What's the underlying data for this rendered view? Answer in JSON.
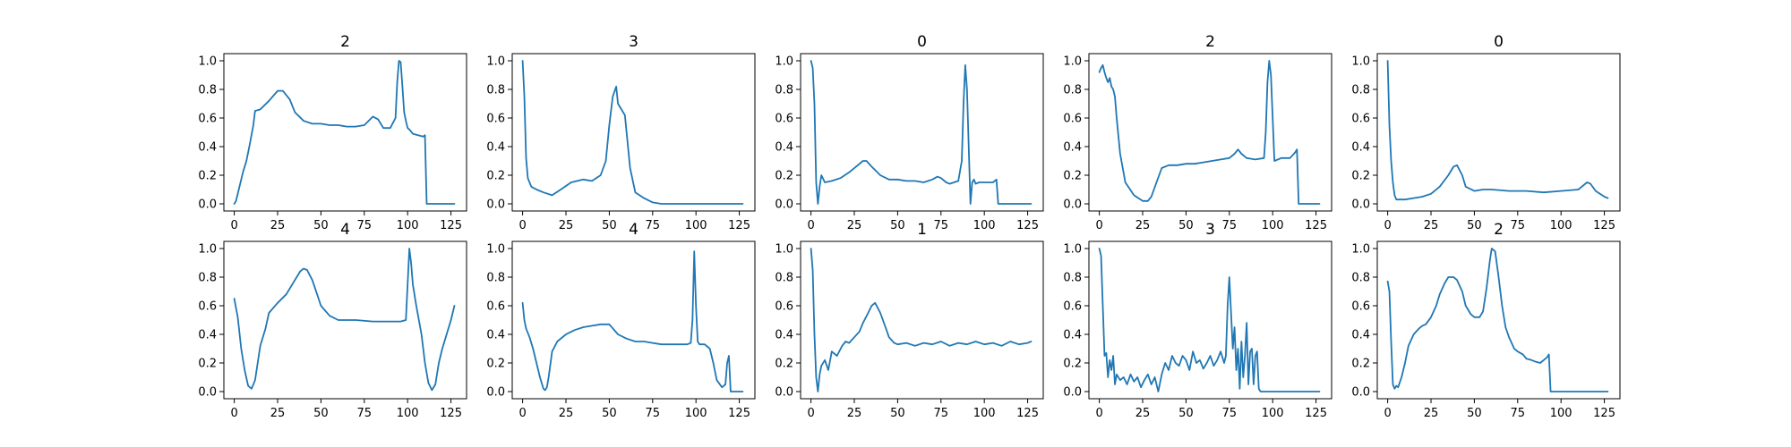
{
  "figure": {
    "line_color": "#1f77b4",
    "background": "#ffffff"
  },
  "chart_data": [
    {
      "type": "line",
      "title": "2",
      "xlim": [
        -6,
        134
      ],
      "ylim": [
        -0.05,
        1.05
      ],
      "xticks": [
        0,
        25,
        50,
        75,
        100,
        125
      ],
      "yticks": [
        0.0,
        0.2,
        0.4,
        0.6,
        0.8,
        1.0
      ],
      "x": [
        0,
        1,
        3,
        5,
        7,
        9,
        11,
        12,
        15,
        20,
        25,
        28,
        32,
        35,
        40,
        45,
        50,
        55,
        60,
        65,
        70,
        75,
        80,
        83,
        86,
        90,
        93,
        94,
        95,
        96,
        97,
        98,
        99,
        100,
        101,
        103,
        106,
        109,
        110,
        111,
        115,
        120,
        125,
        127
      ],
      "series": [
        {
          "values": [
            0.0,
            0.02,
            0.12,
            0.22,
            0.3,
            0.42,
            0.55,
            0.65,
            0.66,
            0.72,
            0.79,
            0.79,
            0.73,
            0.64,
            0.58,
            0.56,
            0.56,
            0.55,
            0.55,
            0.54,
            0.54,
            0.55,
            0.61,
            0.59,
            0.53,
            0.53,
            0.6,
            0.85,
            1.0,
            0.99,
            0.82,
            0.64,
            0.58,
            0.53,
            0.52,
            0.49,
            0.48,
            0.47,
            0.48,
            0.0,
            0.0,
            0.0,
            0.0,
            0.0
          ]
        }
      ]
    },
    {
      "type": "line",
      "title": "3",
      "xlim": [
        -6,
        134
      ],
      "ylim": [
        -0.05,
        1.05
      ],
      "xticks": [
        0,
        25,
        50,
        75,
        100,
        125
      ],
      "yticks": [
        0.0,
        0.2,
        0.4,
        0.6,
        0.8,
        1.0
      ],
      "x": [
        0,
        1,
        2,
        3,
        5,
        8,
        12,
        17,
        22,
        28,
        35,
        40,
        45,
        48,
        50,
        52,
        54,
        55,
        57,
        59,
        62,
        65,
        70,
        75,
        80,
        90,
        100,
        110,
        120,
        127
      ],
      "series": [
        {
          "values": [
            1.0,
            0.75,
            0.32,
            0.18,
            0.12,
            0.1,
            0.08,
            0.06,
            0.1,
            0.15,
            0.17,
            0.16,
            0.2,
            0.3,
            0.55,
            0.75,
            0.82,
            0.7,
            0.66,
            0.62,
            0.25,
            0.08,
            0.04,
            0.01,
            0.0,
            0.0,
            0.0,
            0.0,
            0.0,
            0.0
          ]
        }
      ]
    },
    {
      "type": "line",
      "title": "0",
      "xlim": [
        -6,
        134
      ],
      "ylim": [
        -0.05,
        1.05
      ],
      "xticks": [
        0,
        25,
        50,
        75,
        100,
        125
      ],
      "yticks": [
        0.0,
        0.2,
        0.4,
        0.6,
        0.8,
        1.0
      ],
      "x": [
        0,
        1,
        2,
        3,
        4,
        5,
        6,
        8,
        12,
        17,
        22,
        26,
        30,
        32,
        35,
        40,
        45,
        50,
        55,
        60,
        65,
        70,
        73,
        75,
        78,
        80,
        85,
        87,
        88,
        89,
        90,
        91,
        92,
        93,
        94,
        95,
        97,
        100,
        105,
        107,
        108,
        110,
        115,
        120,
        127
      ],
      "series": [
        {
          "values": [
            1.0,
            0.95,
            0.7,
            0.15,
            0.0,
            0.12,
            0.2,
            0.15,
            0.16,
            0.18,
            0.22,
            0.26,
            0.3,
            0.3,
            0.26,
            0.2,
            0.17,
            0.17,
            0.16,
            0.16,
            0.15,
            0.17,
            0.19,
            0.18,
            0.15,
            0.14,
            0.16,
            0.3,
            0.7,
            0.97,
            0.8,
            0.4,
            0.0,
            0.15,
            0.17,
            0.14,
            0.15,
            0.15,
            0.15,
            0.17,
            0.0,
            0.0,
            0.0,
            0.0,
            0.0
          ]
        }
      ]
    },
    {
      "type": "line",
      "title": "2",
      "xlim": [
        -6,
        134
      ],
      "ylim": [
        -0.05,
        1.05
      ],
      "xticks": [
        0,
        25,
        50,
        75,
        100,
        125
      ],
      "yticks": [
        0.0,
        0.2,
        0.4,
        0.6,
        0.8,
        1.0
      ],
      "x": [
        0,
        1,
        2,
        3,
        4,
        5,
        6,
        7,
        8,
        9,
        10,
        12,
        15,
        20,
        25,
        28,
        30,
        33,
        36,
        40,
        45,
        50,
        55,
        60,
        65,
        70,
        75,
        78,
        80,
        82,
        85,
        90,
        95,
        96,
        97,
        98,
        99,
        100,
        101,
        105,
        110,
        113,
        114,
        115,
        120,
        127
      ],
      "series": [
        {
          "values": [
            0.92,
            0.95,
            0.97,
            0.92,
            0.88,
            0.85,
            0.88,
            0.82,
            0.8,
            0.75,
            0.6,
            0.35,
            0.15,
            0.06,
            0.02,
            0.02,
            0.05,
            0.15,
            0.25,
            0.27,
            0.27,
            0.28,
            0.28,
            0.29,
            0.3,
            0.31,
            0.32,
            0.35,
            0.38,
            0.35,
            0.32,
            0.31,
            0.32,
            0.5,
            0.85,
            1.0,
            0.9,
            0.6,
            0.3,
            0.32,
            0.32,
            0.36,
            0.38,
            0.0,
            0.0,
            0.0
          ]
        }
      ]
    },
    {
      "type": "line",
      "title": "0",
      "xlim": [
        -6,
        134
      ],
      "ylim": [
        -0.05,
        1.05
      ],
      "xticks": [
        0,
        25,
        50,
        75,
        100,
        125
      ],
      "yticks": [
        0.0,
        0.2,
        0.4,
        0.6,
        0.8,
        1.0
      ],
      "x": [
        0,
        1,
        2,
        3,
        4,
        5,
        7,
        10,
        15,
        20,
        25,
        30,
        35,
        38,
        40,
        43,
        45,
        50,
        55,
        60,
        70,
        80,
        90,
        100,
        110,
        112,
        115,
        117,
        120,
        125,
        127
      ],
      "series": [
        {
          "values": [
            1.0,
            0.55,
            0.3,
            0.15,
            0.06,
            0.03,
            0.03,
            0.03,
            0.04,
            0.05,
            0.07,
            0.12,
            0.2,
            0.26,
            0.27,
            0.2,
            0.12,
            0.09,
            0.1,
            0.1,
            0.09,
            0.09,
            0.08,
            0.09,
            0.1,
            0.12,
            0.15,
            0.14,
            0.09,
            0.05,
            0.04
          ]
        }
      ]
    },
    {
      "type": "line",
      "title": "4",
      "xlim": [
        -6,
        134
      ],
      "ylim": [
        -0.05,
        1.05
      ],
      "xticks": [
        0,
        25,
        50,
        75,
        100,
        125
      ],
      "yticks": [
        0.0,
        0.2,
        0.4,
        0.6,
        0.8,
        1.0
      ],
      "x": [
        0,
        2,
        4,
        6,
        8,
        10,
        12,
        15,
        18,
        20,
        25,
        30,
        35,
        38,
        40,
        42,
        45,
        50,
        55,
        60,
        70,
        80,
        90,
        96,
        99,
        100,
        101,
        102,
        103,
        105,
        108,
        110,
        112,
        114,
        116,
        118,
        120,
        125,
        127
      ],
      "series": [
        {
          "values": [
            0.65,
            0.52,
            0.3,
            0.15,
            0.04,
            0.02,
            0.08,
            0.32,
            0.44,
            0.55,
            0.62,
            0.68,
            0.78,
            0.84,
            0.86,
            0.85,
            0.78,
            0.6,
            0.53,
            0.5,
            0.5,
            0.49,
            0.49,
            0.49,
            0.5,
            0.75,
            1.0,
            0.9,
            0.75,
            0.6,
            0.4,
            0.2,
            0.06,
            0.01,
            0.05,
            0.2,
            0.3,
            0.5,
            0.6
          ]
        }
      ]
    },
    {
      "type": "line",
      "title": "4",
      "xlim": [
        -6,
        134
      ],
      "ylim": [
        -0.05,
        1.05
      ],
      "xticks": [
        0,
        25,
        50,
        75,
        100,
        125
      ],
      "yticks": [
        0.0,
        0.2,
        0.4,
        0.6,
        0.8,
        1.0
      ],
      "x": [
        0,
        1,
        2,
        4,
        6,
        8,
        10,
        12,
        13,
        14,
        15,
        17,
        20,
        25,
        30,
        35,
        40,
        45,
        50,
        55,
        60,
        65,
        70,
        75,
        80,
        85,
        90,
        95,
        97,
        98,
        99,
        100,
        101,
        102,
        105,
        108,
        110,
        112,
        115,
        117,
        118,
        119,
        120,
        125,
        127
      ],
      "series": [
        {
          "values": [
            0.62,
            0.5,
            0.44,
            0.38,
            0.3,
            0.2,
            0.1,
            0.02,
            0.01,
            0.03,
            0.1,
            0.28,
            0.35,
            0.4,
            0.43,
            0.45,
            0.46,
            0.47,
            0.47,
            0.4,
            0.37,
            0.35,
            0.35,
            0.34,
            0.33,
            0.33,
            0.33,
            0.33,
            0.34,
            0.5,
            0.98,
            0.6,
            0.35,
            0.33,
            0.33,
            0.3,
            0.2,
            0.08,
            0.03,
            0.05,
            0.2,
            0.25,
            0.0,
            0.0,
            0.0
          ]
        }
      ]
    },
    {
      "type": "line",
      "title": "1",
      "xlim": [
        -6,
        134
      ],
      "ylim": [
        -0.05,
        1.05
      ],
      "xticks": [
        0,
        25,
        50,
        75,
        100,
        125
      ],
      "yticks": [
        0.0,
        0.2,
        0.4,
        0.6,
        0.8,
        1.0
      ],
      "x": [
        0,
        1,
        2,
        3,
        4,
        5,
        6,
        8,
        10,
        12,
        15,
        18,
        20,
        22,
        25,
        28,
        30,
        33,
        35,
        37,
        40,
        43,
        45,
        48,
        50,
        55,
        60,
        65,
        70,
        75,
        80,
        85,
        90,
        95,
        100,
        105,
        110,
        115,
        120,
        125,
        127
      ],
      "series": [
        {
          "values": [
            1.0,
            0.85,
            0.4,
            0.1,
            0.0,
            0.12,
            0.18,
            0.22,
            0.15,
            0.28,
            0.25,
            0.32,
            0.35,
            0.34,
            0.38,
            0.42,
            0.48,
            0.55,
            0.6,
            0.62,
            0.55,
            0.45,
            0.38,
            0.34,
            0.33,
            0.34,
            0.32,
            0.34,
            0.33,
            0.35,
            0.32,
            0.34,
            0.33,
            0.35,
            0.33,
            0.34,
            0.32,
            0.35,
            0.33,
            0.34,
            0.35
          ]
        }
      ]
    },
    {
      "type": "line",
      "title": "3",
      "xlim": [
        -6,
        134
      ],
      "ylim": [
        -0.05,
        1.05
      ],
      "xticks": [
        0,
        25,
        50,
        75,
        100,
        125
      ],
      "yticks": [
        0.0,
        0.2,
        0.4,
        0.6,
        0.8,
        1.0
      ],
      "x": [
        0,
        1,
        2,
        3,
        4,
        5,
        6,
        7,
        8,
        9,
        10,
        12,
        14,
        16,
        18,
        20,
        22,
        24,
        26,
        28,
        30,
        32,
        34,
        36,
        38,
        40,
        42,
        44,
        46,
        48,
        50,
        52,
        54,
        56,
        58,
        60,
        62,
        64,
        66,
        68,
        70,
        72,
        73,
        74,
        75,
        76,
        77,
        78,
        79,
        80,
        81,
        82,
        83,
        84,
        85,
        86,
        87,
        88,
        89,
        90,
        91,
        92,
        93,
        100,
        110,
        120,
        127
      ],
      "series": [
        {
          "values": [
            1.0,
            0.95,
            0.6,
            0.25,
            0.27,
            0.1,
            0.22,
            0.15,
            0.25,
            0.05,
            0.12,
            0.08,
            0.1,
            0.05,
            0.12,
            0.07,
            0.1,
            0.03,
            0.08,
            0.12,
            0.05,
            0.1,
            0.0,
            0.12,
            0.2,
            0.15,
            0.25,
            0.2,
            0.18,
            0.25,
            0.22,
            0.15,
            0.28,
            0.2,
            0.22,
            0.16,
            0.2,
            0.25,
            0.18,
            0.22,
            0.28,
            0.2,
            0.25,
            0.6,
            0.8,
            0.55,
            0.3,
            0.45,
            0.15,
            0.3,
            0.02,
            0.35,
            0.1,
            0.25,
            0.48,
            0.05,
            0.28,
            0.3,
            0.05,
            0.25,
            0.28,
            0.02,
            0.0,
            0.0,
            0.0,
            0.0,
            0.0
          ]
        }
      ]
    },
    {
      "type": "line",
      "title": "2",
      "xlim": [
        -6,
        134
      ],
      "ylim": [
        -0.05,
        1.05
      ],
      "xticks": [
        0,
        25,
        50,
        75,
        100,
        125
      ],
      "yticks": [
        0.0,
        0.2,
        0.4,
        0.6,
        0.8,
        1.0
      ],
      "x": [
        0,
        1,
        2,
        3,
        4,
        5,
        6,
        8,
        10,
        12,
        15,
        18,
        20,
        22,
        25,
        28,
        30,
        33,
        35,
        38,
        40,
        43,
        45,
        48,
        50,
        53,
        55,
        57,
        59,
        60,
        62,
        64,
        66,
        68,
        70,
        73,
        75,
        78,
        80,
        83,
        85,
        88,
        90,
        92,
        93,
        94,
        95,
        100,
        110,
        120,
        127
      ],
      "series": [
        {
          "values": [
            0.77,
            0.7,
            0.35,
            0.05,
            0.02,
            0.04,
            0.03,
            0.1,
            0.2,
            0.32,
            0.4,
            0.44,
            0.46,
            0.47,
            0.52,
            0.6,
            0.68,
            0.76,
            0.8,
            0.8,
            0.78,
            0.7,
            0.6,
            0.54,
            0.52,
            0.52,
            0.56,
            0.72,
            0.92,
            1.0,
            0.98,
            0.8,
            0.6,
            0.45,
            0.38,
            0.3,
            0.28,
            0.26,
            0.23,
            0.22,
            0.21,
            0.2,
            0.22,
            0.24,
            0.26,
            0.0,
            0.0,
            0.0,
            0.0,
            0.0,
            0.0
          ]
        }
      ]
    }
  ]
}
